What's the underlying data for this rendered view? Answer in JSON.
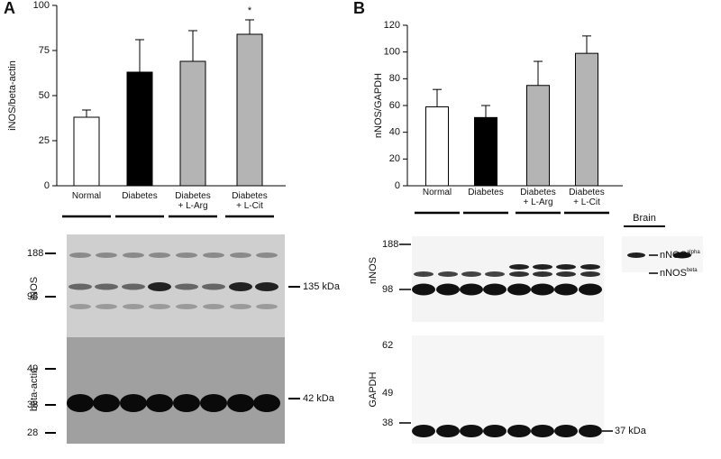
{
  "figure": {
    "panel_labels": [
      "A",
      "B"
    ]
  },
  "chart_data": [
    {
      "type": "bar",
      "ylabel": "iNOS/beta-actin",
      "categories": [
        "Normal",
        "Diabetes",
        "Diabetes\n+ L-Arg",
        "Diabetes\n+ L-Cit"
      ],
      "values": [
        38,
        63,
        69,
        84
      ],
      "errors": [
        4,
        18,
        17,
        8
      ],
      "colors": [
        "#ffffff",
        "#000000",
        "#b4b4b4",
        "#b4b4b4"
      ],
      "ylim": [
        0,
        100
      ],
      "yticks": [
        0,
        25,
        50,
        75,
        100
      ],
      "annotation": "*"
    },
    {
      "type": "bar",
      "ylabel": "nNOS/GAPDH",
      "categories": [
        "Normal",
        "Diabetes",
        "Diabetes\n+ L-Arg",
        "Diabetes\n+ L-Cit"
      ],
      "values": [
        59,
        51,
        75,
        99
      ],
      "errors": [
        13,
        9,
        18,
        13
      ],
      "colors": [
        "#ffffff",
        "#000000",
        "#b4b4b4",
        "#b4b4b4"
      ],
      "ylim": [
        0,
        120
      ],
      "yticks": [
        0,
        20,
        40,
        60,
        80,
        100,
        120
      ]
    }
  ],
  "blots": {
    "a": {
      "inos_label": "iNOS",
      "inos_markers": [
        "188",
        "98"
      ],
      "inos_size": "135 kDa",
      "actin_label": "beta-actin",
      "actin_markers": [
        "49",
        "38",
        "28"
      ],
      "actin_size": "42 kDa"
    },
    "b": {
      "nnos_label": "nNOS",
      "nnos_markers": [
        "188",
        "98"
      ],
      "alpha": {
        "text": "nNOS",
        "sup": "alpha"
      },
      "beta": {
        "text": "nNOS",
        "sup": "beta"
      },
      "brain": "Brain",
      "gapdh_label": "GAPDH",
      "gapdh_markers": [
        "62",
        "49",
        "38"
      ],
      "gapdh_size": "37 kDa"
    }
  }
}
